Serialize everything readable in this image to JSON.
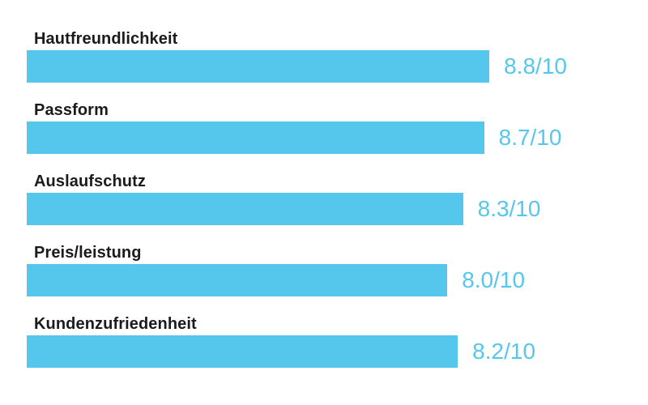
{
  "page": {
    "background": "#ffffff"
  },
  "chart_data": {
    "type": "bar",
    "orientation": "horizontal",
    "title": "",
    "categories": [
      "Hautfreundlichkeit",
      "Passform",
      "Auslaufschutz",
      "Preis/leistung",
      "Kundenzufriedenheit"
    ],
    "values": [
      8.8,
      8.7,
      8.3,
      8.0,
      8.2
    ],
    "value_labels": [
      "8.8/10",
      "8.7/10",
      "8.3/10",
      "8.0/10",
      "8.2/10"
    ],
    "scale_max": 10,
    "xlim": [
      0,
      10
    ],
    "grid": false,
    "legend": false,
    "bar_color": "#55C7EC",
    "value_text_color": "#55C7EC",
    "label_text_color": "#1b1b1b"
  }
}
